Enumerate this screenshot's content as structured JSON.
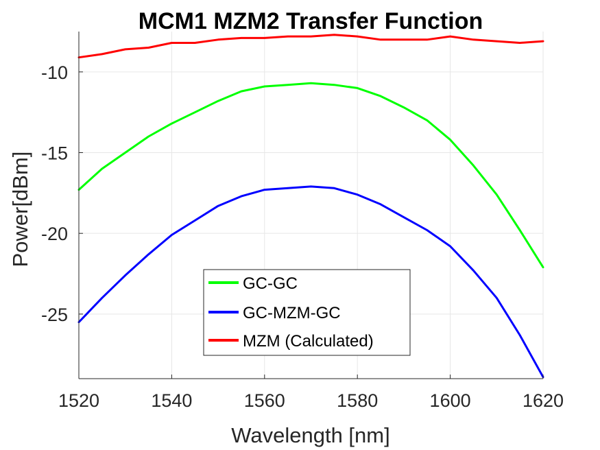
{
  "chart_data": {
    "type": "line",
    "title": "MCM1 MZM2 Transfer Function",
    "xlabel": "Wavelength [nm]",
    "ylabel": "Power[dBm]",
    "xlim": [
      1520,
      1620
    ],
    "ylim": [
      -29,
      -7.5
    ],
    "xticks": [
      1520,
      1540,
      1560,
      1580,
      1600,
      1620
    ],
    "yticks": [
      -10,
      -15,
      -20,
      -25
    ],
    "grid": true,
    "legend_position": "bottom-center",
    "series": [
      {
        "name": "GC-GC",
        "color": "#00ff00",
        "x": [
          1520,
          1525,
          1530,
          1535,
          1540,
          1545,
          1550,
          1555,
          1560,
          1565,
          1570,
          1575,
          1580,
          1585,
          1590,
          1595,
          1600,
          1605,
          1610,
          1615,
          1620
        ],
        "y": [
          -17.3,
          -16.0,
          -15.0,
          -14.0,
          -13.2,
          -12.5,
          -11.8,
          -11.2,
          -10.9,
          -10.8,
          -10.7,
          -10.8,
          -11.0,
          -11.5,
          -12.2,
          -13.0,
          -14.2,
          -15.8,
          -17.6,
          -19.8,
          -22.1
        ]
      },
      {
        "name": "GC-MZM-GC",
        "color": "#0000ff",
        "x": [
          1520,
          1525,
          1530,
          1535,
          1540,
          1545,
          1550,
          1555,
          1560,
          1565,
          1570,
          1575,
          1580,
          1585,
          1590,
          1595,
          1600,
          1605,
          1610,
          1615,
          1620
        ],
        "y": [
          -25.5,
          -24.0,
          -22.6,
          -21.3,
          -20.1,
          -19.2,
          -18.3,
          -17.7,
          -17.3,
          -17.2,
          -17.1,
          -17.2,
          -17.6,
          -18.2,
          -19.0,
          -19.8,
          -20.8,
          -22.3,
          -24.0,
          -26.3,
          -28.9
        ]
      },
      {
        "name": "MZM (Calculated)",
        "color": "#ff0000",
        "x": [
          1520,
          1525,
          1530,
          1535,
          1540,
          1545,
          1550,
          1555,
          1560,
          1565,
          1570,
          1575,
          1580,
          1585,
          1590,
          1595,
          1600,
          1605,
          1610,
          1615,
          1620
        ],
        "y": [
          -9.1,
          -8.9,
          -8.6,
          -8.5,
          -8.2,
          -8.2,
          -8.0,
          -7.9,
          -7.9,
          -7.8,
          -7.8,
          -7.7,
          -7.8,
          -8.0,
          -8.0,
          -8.0,
          -7.8,
          -8.0,
          -8.1,
          -8.2,
          -8.1
        ]
      }
    ]
  }
}
